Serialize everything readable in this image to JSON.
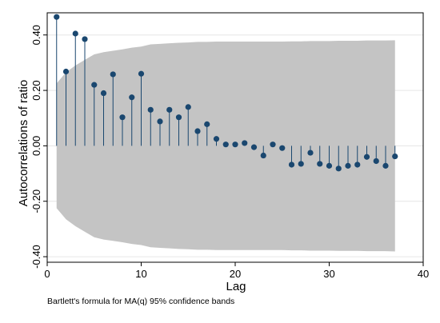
{
  "chart_data": {
    "type": "scatter",
    "style": "stem",
    "xlabel": "Lag",
    "ylabel": "Autocorrelations of ratio",
    "note": "Bartlett's formula for MA(q) 95% confidence bands",
    "xlim": [
      0,
      40
    ],
    "ylim": [
      -0.42,
      0.48
    ],
    "xticks": [
      0,
      10,
      20,
      30,
      40
    ],
    "yticks": [
      -0.4,
      -0.2,
      0.0,
      0.2,
      0.4
    ],
    "xtick_labels": [
      "0",
      "10",
      "20",
      "30",
      "40"
    ],
    "ytick_labels": [
      "-0.40",
      "-0.20",
      "0.00",
      "0.20",
      "0.40"
    ],
    "grid": "horizontal",
    "legend": "none",
    "colors": {
      "marker": "#1a476f",
      "band": "#c4c4c4",
      "stem": "#1a476f"
    },
    "series": [
      {
        "x": [
          1,
          2,
          3,
          4,
          5,
          6,
          7,
          8,
          9,
          10,
          11,
          12,
          13,
          14,
          15,
          16,
          17,
          18,
          19,
          20,
          21,
          22,
          23,
          24,
          25,
          26,
          27,
          28,
          29,
          30,
          31,
          32,
          33,
          34,
          35,
          36,
          37
        ],
        "values": [
          0.465,
          0.268,
          0.405,
          0.385,
          0.22,
          0.19,
          0.258,
          0.103,
          0.175,
          0.26,
          0.13,
          0.088,
          0.13,
          0.103,
          0.14,
          0.053,
          0.078,
          0.025,
          0.005,
          0.005,
          0.01,
          -0.005,
          -0.035,
          0.005,
          -0.008,
          -0.068,
          -0.065,
          -0.025,
          -0.065,
          -0.072,
          -0.082,
          -0.072,
          -0.068,
          -0.04,
          -0.055,
          -0.072,
          -0.038
        ]
      }
    ],
    "confidence_band": {
      "x": [
        1,
        2,
        3,
        4,
        5,
        6,
        7,
        8,
        9,
        10,
        11,
        12,
        13,
        14,
        15,
        16,
        17,
        18,
        19,
        20,
        21,
        22,
        23,
        24,
        25,
        26,
        27,
        28,
        29,
        30,
        31,
        32,
        33,
        34,
        35,
        36,
        37
      ],
      "upper": [
        0.225,
        0.265,
        0.29,
        0.31,
        0.33,
        0.338,
        0.343,
        0.348,
        0.354,
        0.358,
        0.366,
        0.368,
        0.37,
        0.372,
        0.373,
        0.375,
        0.375,
        0.376,
        0.376,
        0.376,
        0.376,
        0.376,
        0.376,
        0.376,
        0.376,
        0.377,
        0.377,
        0.378,
        0.378,
        0.378,
        0.379,
        0.379,
        0.379,
        0.38,
        0.38,
        0.38,
        0.381
      ],
      "lower": [
        -0.225,
        -0.265,
        -0.29,
        -0.31,
        -0.33,
        -0.338,
        -0.343,
        -0.348,
        -0.354,
        -0.358,
        -0.366,
        -0.368,
        -0.37,
        -0.372,
        -0.373,
        -0.375,
        -0.375,
        -0.376,
        -0.376,
        -0.376,
        -0.376,
        -0.376,
        -0.376,
        -0.376,
        -0.376,
        -0.377,
        -0.377,
        -0.378,
        -0.378,
        -0.378,
        -0.379,
        -0.379,
        -0.379,
        -0.38,
        -0.38,
        -0.38,
        -0.381
      ]
    }
  }
}
